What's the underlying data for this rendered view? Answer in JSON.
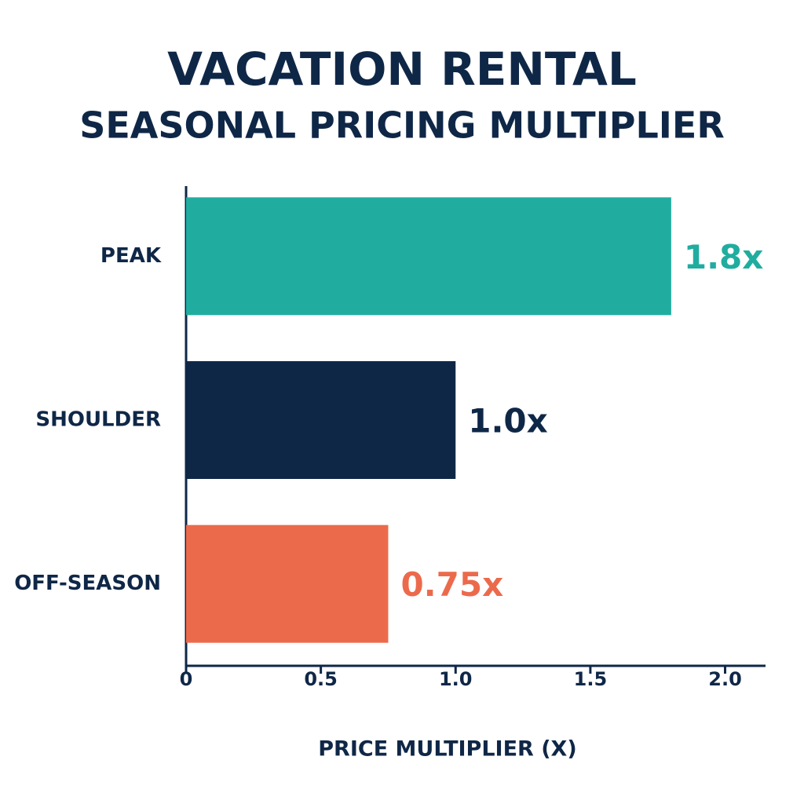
{
  "chart_data": {
    "type": "hbar",
    "title": "VACATION RENTAL",
    "subtitle": "SEASONAL PRICING MULTIPLIER",
    "categories": [
      "PEAK",
      "SHOULDER",
      "OFF-SEASON"
    ],
    "values": [
      1.8,
      1.0,
      0.75
    ],
    "value_labels": [
      "1.8x",
      "1.0x",
      "0.75x"
    ],
    "colors": [
      "#20ada0",
      "#0f2747",
      "#ec6a4c"
    ],
    "xlim": [
      0,
      2.15
    ],
    "xticks": [
      0,
      0.5,
      {
        "value": 1.0,
        "label": "1.0"
      },
      1.5,
      {
        "value": 2.0,
        "label": "2.0"
      }
    ],
    "x_label": "PRICE MULTIPLIER (X)"
  }
}
